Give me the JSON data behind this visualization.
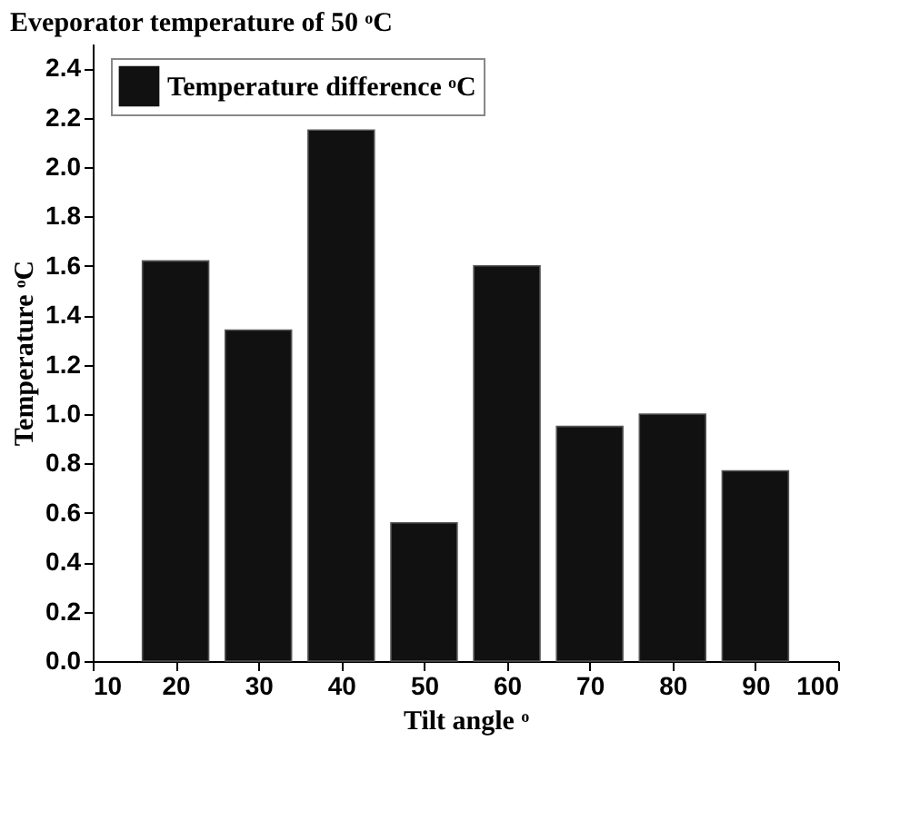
{
  "chart_data": {
    "type": "bar",
    "title": "Eveporator temperature  of 50 ᵒC",
    "xlabel": "Tilt angle ᵒ",
    "ylabel": "Temperature ᵒC",
    "x": [
      20,
      30,
      40,
      50,
      60,
      70,
      80,
      90
    ],
    "series": [
      {
        "name": "Temperature difference ᵒC",
        "color": "#111111",
        "values": [
          1.62,
          1.34,
          2.15,
          0.56,
          1.6,
          0.95,
          1.0,
          0.77
        ]
      }
    ],
    "xlim": [
      10,
      100
    ],
    "xticks": [
      10,
      20,
      30,
      40,
      50,
      60,
      70,
      80,
      90,
      100
    ],
    "ylim": [
      0,
      2.5
    ],
    "yticks": [
      {
        "value": 0,
        "label": "0.0"
      },
      0.2,
      0.4,
      0.6,
      0.8,
      {
        "value": 1,
        "label": "1.0"
      },
      1.2,
      1.4,
      1.6,
      1.8,
      {
        "value": 2,
        "label": "2.0"
      },
      2.2,
      2.4
    ],
    "grid": false,
    "legend": "top left"
  }
}
